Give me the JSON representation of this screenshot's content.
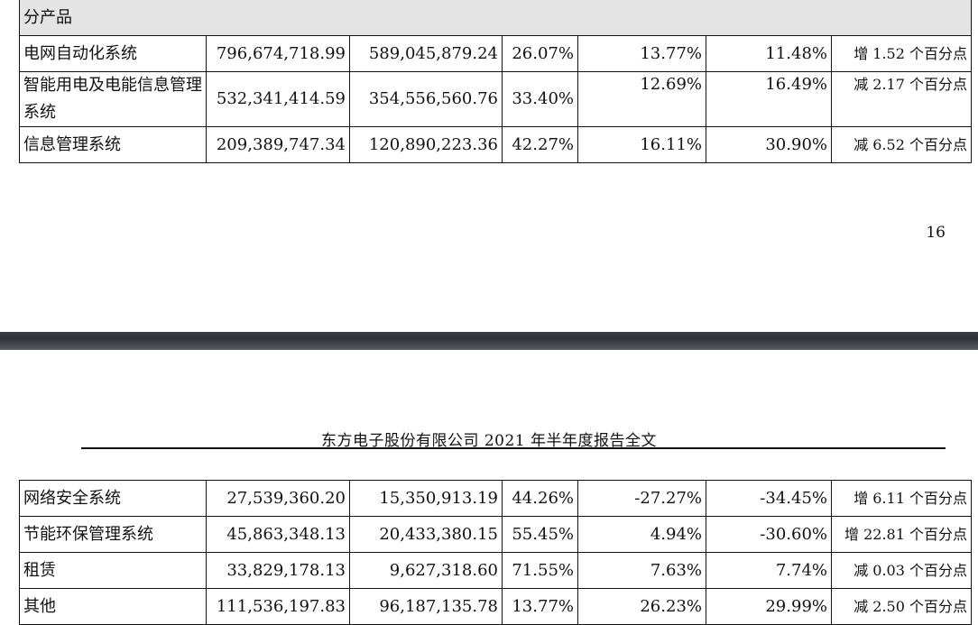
{
  "top_table": {
    "section_label": "分产品",
    "rows": [
      {
        "name": "电网自动化系统",
        "revenue": "796,674,718.99",
        "cost": "589,045,879.24",
        "margin": "26.07%",
        "rev_change": "13.77%",
        "cost_change": "11.48%",
        "margin_change": "增 1.52 个百分点"
      },
      {
        "name": "智能用电及电能信息管理系统",
        "revenue": "532,341,414.59",
        "cost": "354,556,560.76",
        "margin": "33.40%",
        "rev_change": "12.69%",
        "cost_change": "16.49%",
        "margin_change": "减 2.17 个百分点"
      },
      {
        "name": "信息管理系统",
        "revenue": "209,389,747.34",
        "cost": "120,890,223.36",
        "margin": "42.27%",
        "rev_change": "16.11%",
        "cost_change": "30.90%",
        "margin_change": "减 6.52 个百分点"
      }
    ]
  },
  "page_number": "16",
  "running_header": "东方电子股份有限公司 2021 年半年度报告全文",
  "bottom_table": {
    "rows": [
      {
        "name": "网络安全系统",
        "revenue": "27,539,360.20",
        "cost": "15,350,913.19",
        "margin": "44.26%",
        "rev_change": "-27.27%",
        "cost_change": "-34.45%",
        "margin_change": "增 6.11 个百分点"
      },
      {
        "name": "节能环保管理系统",
        "revenue": "45,863,348.13",
        "cost": "20,433,380.15",
        "margin": "55.45%",
        "rev_change": "4.94%",
        "cost_change": "-30.60%",
        "margin_change": "增 22.81 个百分点"
      },
      {
        "name": "租赁",
        "revenue": "33,829,178.13",
        "cost": "9,627,318.60",
        "margin": "71.55%",
        "rev_change": "7.63%",
        "cost_change": "7.74%",
        "margin_change": "减 0.03 个百分点"
      },
      {
        "name": "其他",
        "revenue": "111,536,197.83",
        "cost": "96,187,135.78",
        "margin": "13.77%",
        "rev_change": "26.23%",
        "cost_change": "29.99%",
        "margin_change": "减 2.50 个百分点"
      }
    ]
  }
}
